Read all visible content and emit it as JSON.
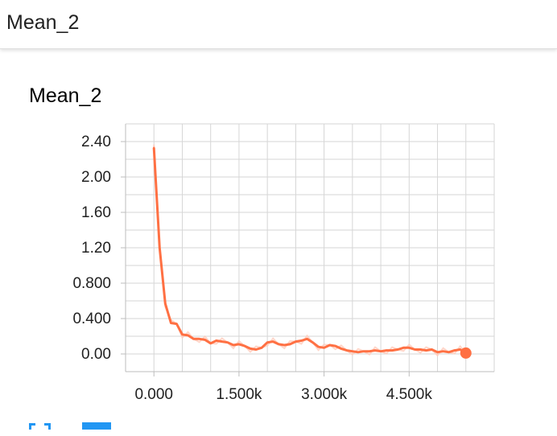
{
  "header": {
    "title": "Mean_2"
  },
  "card": {
    "title": "Mean_2"
  },
  "toolbar": {
    "expand_icon": "expand-icon",
    "data_icon": "data-table-icon"
  },
  "colors": {
    "series": "#ff7043",
    "series_raw": "#ffccbc",
    "grid": "#d6d6d6",
    "axis": "#bdbdbd"
  },
  "chart_data": {
    "type": "line",
    "title": "",
    "xlabel": "",
    "ylabel": "",
    "xlim": [
      -500,
      6000
    ],
    "ylim": [
      -0.2,
      2.6
    ],
    "grid": true,
    "x_ticks": [
      0,
      1500,
      3000,
      4500
    ],
    "x_tick_labels": [
      "0.000",
      "1.500k",
      "3.000k",
      "4.500k"
    ],
    "y_ticks": [
      0,
      0.4,
      0.8,
      1.2,
      1.6,
      2.0,
      2.4
    ],
    "y_tick_labels": [
      "0.00",
      "0.400",
      "0.800",
      "1.20",
      "1.60",
      "2.00",
      "2.40"
    ],
    "series": [
      {
        "x": [
          0,
          100,
          200,
          300,
          400,
          500,
          600,
          700,
          800,
          900,
          1000,
          1100,
          1200,
          1300,
          1400,
          1500,
          1600,
          1700,
          1800,
          1900,
          2000,
          2100,
          2200,
          2300,
          2400,
          2500,
          2600,
          2700,
          2800,
          2900,
          3000,
          3100,
          3200,
          3300,
          3400,
          3500,
          3600,
          3700,
          3800,
          3900,
          4000,
          4100,
          4200,
          4300,
          4400,
          4500,
          4600,
          4700,
          4800,
          4900,
          5000,
          5100,
          5200,
          5300,
          5400,
          5500
        ],
        "values": [
          2.33,
          1.2,
          0.57,
          0.35,
          0.34,
          0.22,
          0.21,
          0.17,
          0.17,
          0.16,
          0.12,
          0.15,
          0.14,
          0.13,
          0.1,
          0.11,
          0.09,
          0.06,
          0.05,
          0.07,
          0.13,
          0.14,
          0.11,
          0.1,
          0.11,
          0.14,
          0.15,
          0.17,
          0.13,
          0.08,
          0.07,
          0.1,
          0.09,
          0.06,
          0.04,
          0.03,
          0.02,
          0.03,
          0.03,
          0.04,
          0.03,
          0.04,
          0.04,
          0.05,
          0.07,
          0.07,
          0.05,
          0.05,
          0.04,
          0.05,
          0.02,
          0.03,
          0.02,
          0.04,
          0.05,
          0.01
        ]
      }
    ]
  }
}
